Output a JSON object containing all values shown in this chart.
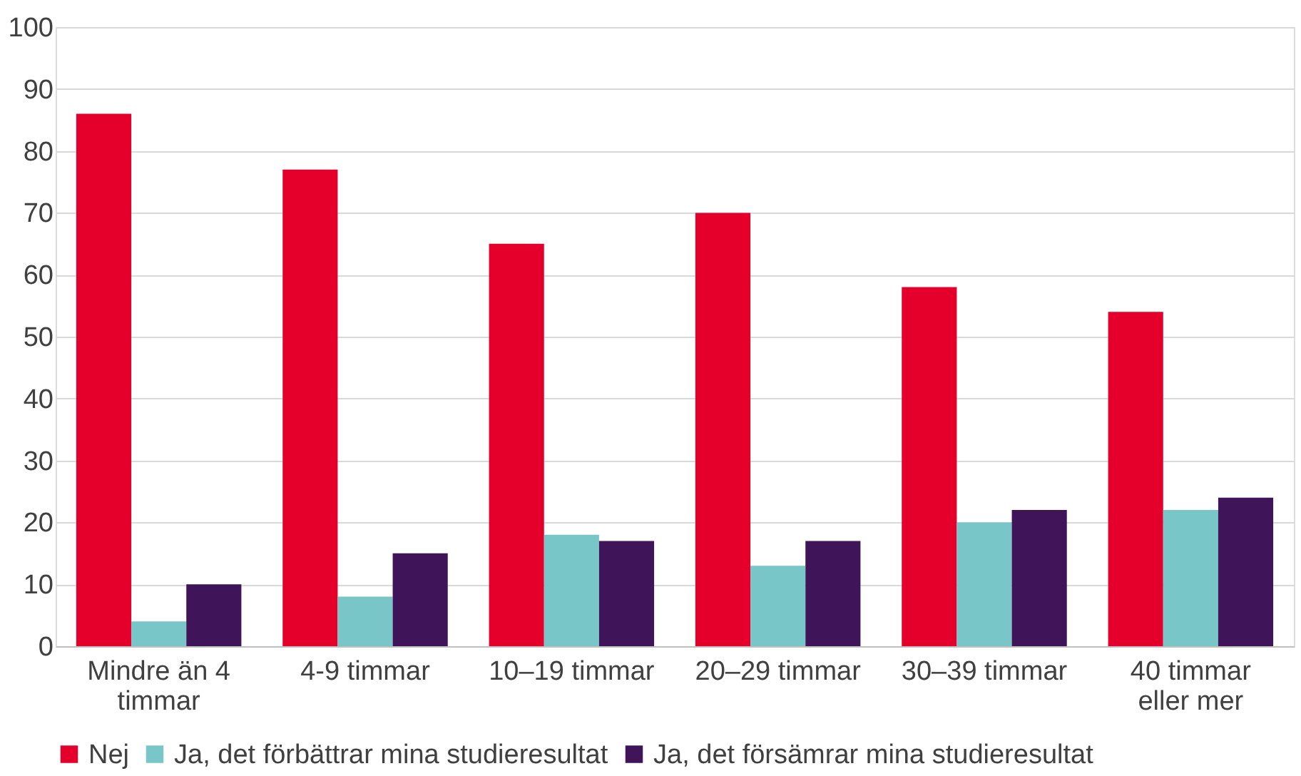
{
  "chart_data": {
    "type": "bar",
    "categories": [
      "Mindre än 4 timmar",
      "4-9 timmar",
      "10–19 timmar",
      "20–29 timmar",
      "30–39 timmar",
      "40 timmar eller mer"
    ],
    "series": [
      {
        "name": "Nej",
        "color": "#e4002b",
        "values": [
          86,
          77,
          65,
          70,
          58,
          54
        ]
      },
      {
        "name": "Ja, det förbättrar mina studieresultat",
        "color": "#78c6c8",
        "values": [
          4,
          8,
          18,
          13,
          20,
          22
        ]
      },
      {
        "name": "Ja, det försämrar mina studieresultat",
        "color": "#3f1459",
        "values": [
          10,
          15,
          17,
          17,
          22,
          24
        ]
      }
    ],
    "ylim": [
      0,
      100
    ],
    "yticks": [
      0,
      10,
      20,
      30,
      40,
      50,
      60,
      70,
      80,
      90,
      100
    ],
    "grid": "y",
    "legend": "bottom"
  }
}
